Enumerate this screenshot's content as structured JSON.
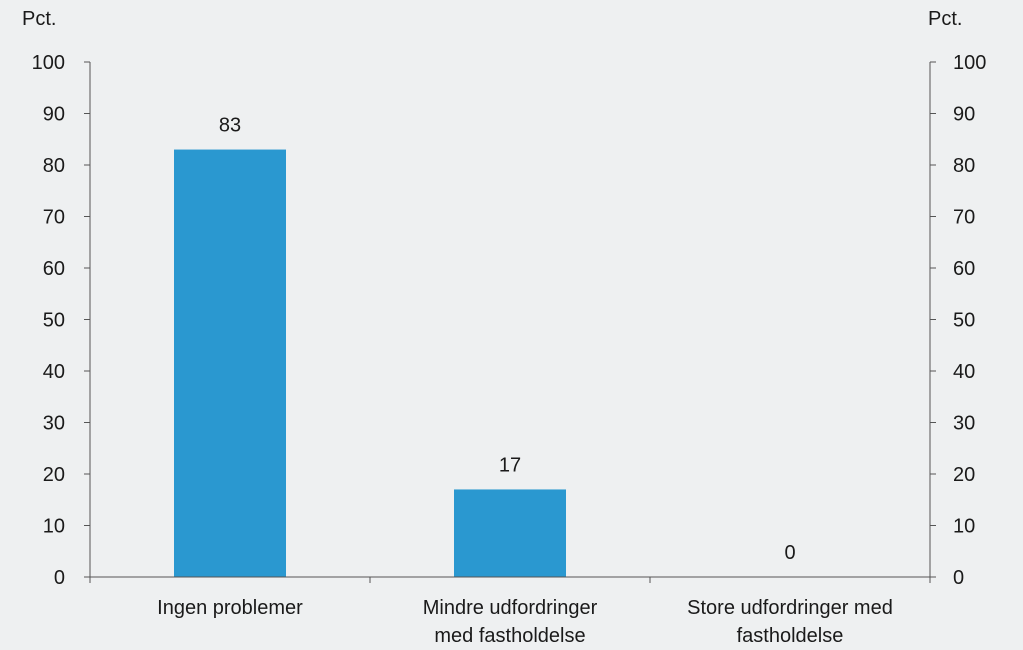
{
  "chart_data": {
    "type": "bar",
    "categories": [
      [
        "Ingen problemer"
      ],
      [
        "Mindre udfordringer",
        "med fastholdelse"
      ],
      [
        "Store udfordringer med",
        "fastholdelse"
      ]
    ],
    "values": [
      83,
      17,
      0
    ],
    "data_labels": [
      "83",
      "17",
      "0"
    ],
    "ylabel_left": "Pct.",
    "ylabel_right": "Pct.",
    "ylim": [
      0,
      100
    ],
    "yticks": [
      0,
      10,
      20,
      30,
      40,
      50,
      60,
      70,
      80,
      90,
      100
    ],
    "grid": false,
    "legend": "none",
    "bar_color": "#2a98d0",
    "axis_color": "#555555",
    "background": "#eef0f1"
  }
}
